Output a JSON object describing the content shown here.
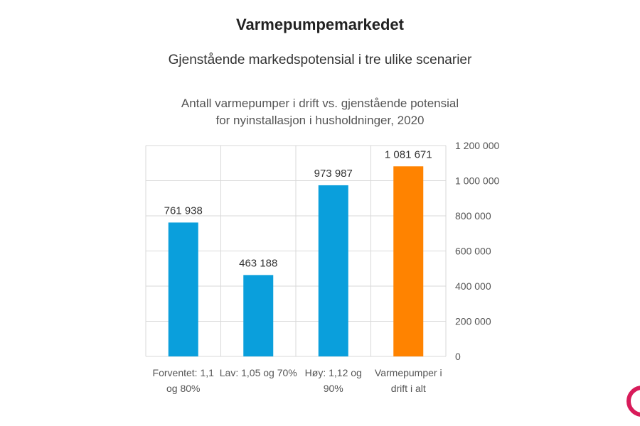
{
  "header": {
    "title": "Varmepumpemarkedet",
    "subtitle": "Gjenstående markedspotensial i tre ulike scenarier"
  },
  "chart_data": {
    "type": "bar",
    "title": [
      "Antall varmepumper i drift vs. gjenstående potensial",
      "for nyinstallasjon i husholdninger, 2020"
    ],
    "categories": [
      [
        "Forventet: 1,1",
        "og 80%"
      ],
      [
        "Lav: 1,05 og 70%"
      ],
      [
        "Høy: 1,12 og",
        "90%"
      ],
      [
        "Varmepumper i",
        "drift i alt"
      ]
    ],
    "values": [
      761938,
      463188,
      973987,
      1081671
    ],
    "data_labels": [
      "761 938",
      "463 188",
      "973 987",
      "1 081 671"
    ],
    "colors": [
      "#0a9fdc",
      "#0a9fdc",
      "#0a9fdc",
      "#ff8300"
    ],
    "ylim": [
      0,
      1200000
    ],
    "yticks": [
      0,
      200000,
      400000,
      600000,
      800000,
      1000000,
      1200000
    ],
    "ytick_labels": [
      "0",
      "200 000",
      "400 000",
      "600 000",
      "800 000",
      "1 000 000",
      "1 200 000"
    ],
    "y_axis_position": "right",
    "grid": true,
    "xlabel": "",
    "ylabel": ""
  },
  "logo": {
    "color": "#d81b5a"
  }
}
